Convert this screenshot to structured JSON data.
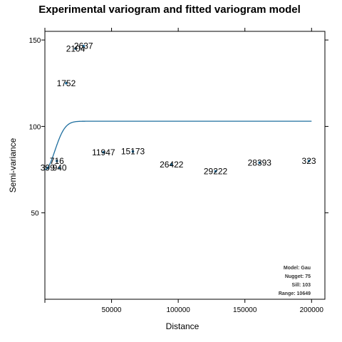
{
  "chart_data": {
    "type": "scatter",
    "title": "Experimental variogram and fitted variogram model",
    "xlabel": "Distance",
    "ylabel": "Semi-variance",
    "xlim": [
      0,
      210000
    ],
    "ylim": [
      0,
      155
    ],
    "xticks": [
      50000,
      100000,
      150000,
      200000
    ],
    "yticks": [
      50,
      100,
      150
    ],
    "grid": false,
    "points": [
      {
        "x": 2000,
        "y": 76,
        "label": "399"
      },
      {
        "x": 9000,
        "y": 80,
        "label": "716"
      },
      {
        "x": 11000,
        "y": 76,
        "label": "940"
      },
      {
        "x": 16000,
        "y": 125,
        "label": "1752"
      },
      {
        "x": 23000,
        "y": 145,
        "label": "2104"
      },
      {
        "x": 29000,
        "y": 146.5,
        "label": "2637"
      },
      {
        "x": 44000,
        "y": 85,
        "label": "11947"
      },
      {
        "x": 66000,
        "y": 85.5,
        "label": "15173"
      },
      {
        "x": 95000,
        "y": 78,
        "label": "26422"
      },
      {
        "x": 128000,
        "y": 74,
        "label": "29222"
      },
      {
        "x": 161000,
        "y": 79,
        "label": "28393"
      },
      {
        "x": 198000,
        "y": 80,
        "label": "323"
      }
    ],
    "model_curve": {
      "name": "Gau",
      "nugget": 75,
      "sill": 103,
      "range": 10649,
      "x_max": 200000,
      "color": "#1f6f9f"
    },
    "annotations": [
      "Model: Gau",
      "Nugget: 75",
      "Sill: 103",
      "Range: 10649"
    ]
  }
}
